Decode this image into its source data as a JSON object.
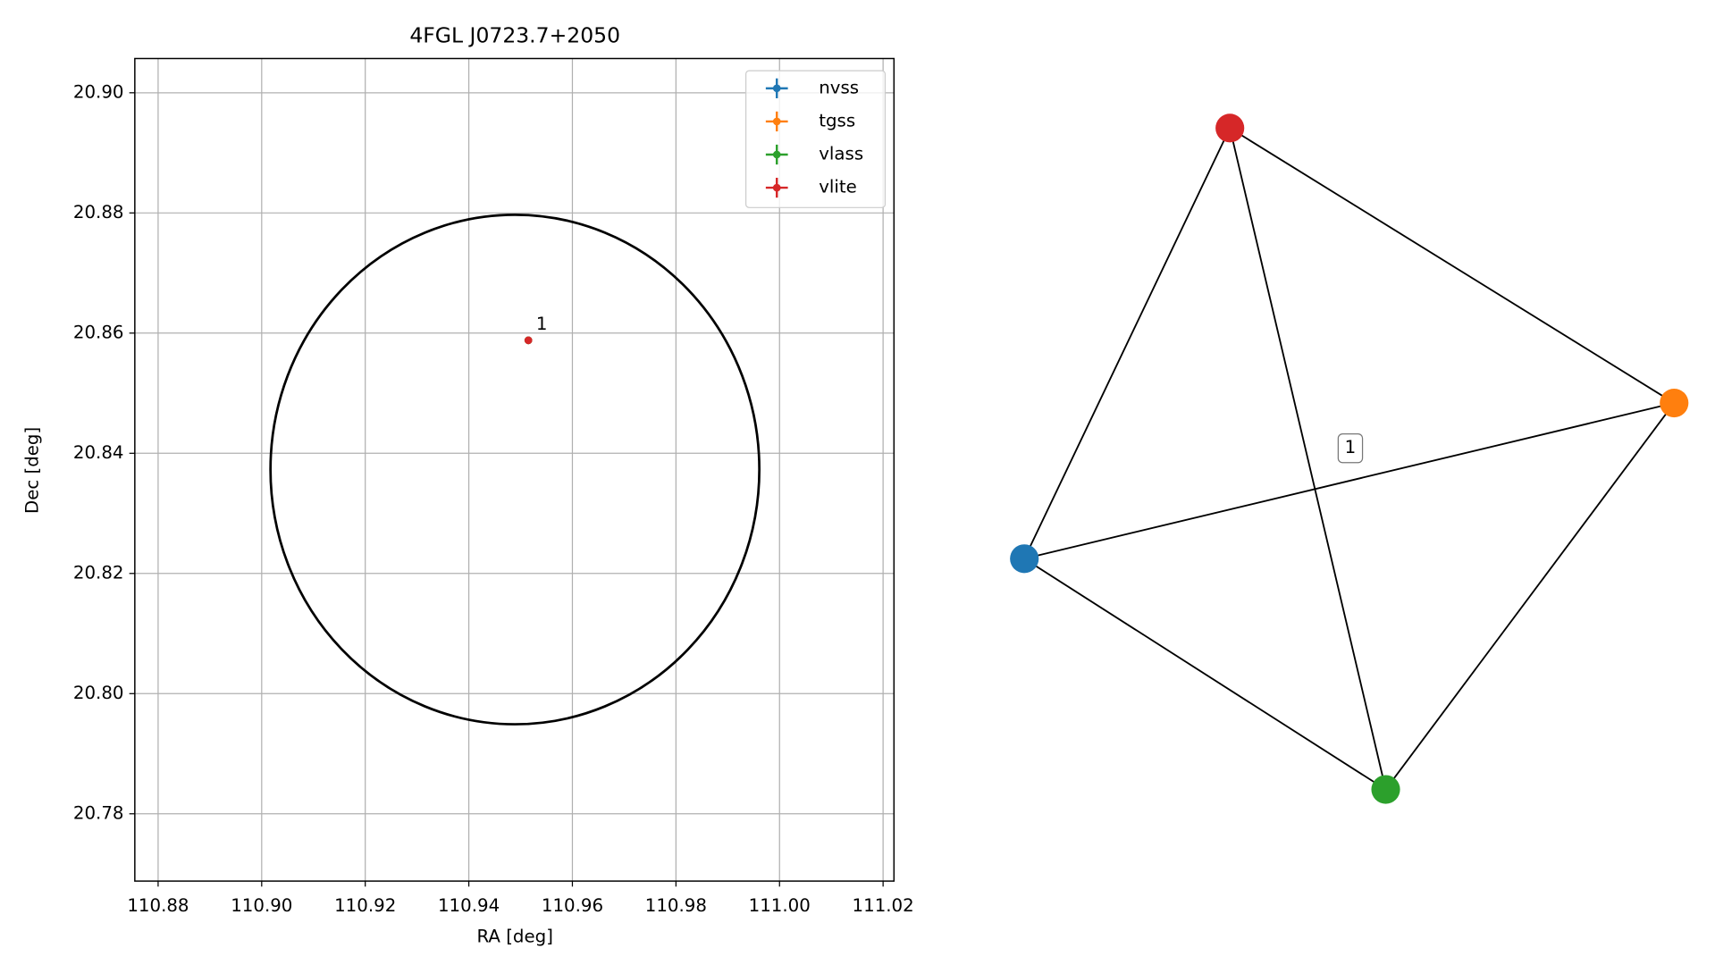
{
  "chart_data": [
    {
      "type": "scatter",
      "title": "4FGL J0723.7+2050",
      "xlabel": "RA [deg]",
      "ylabel": "Dec [deg]",
      "xlim": [
        110.8755,
        111.0221
      ],
      "ylim": [
        20.7688,
        20.9057
      ],
      "xticks": [
        110.88,
        {
          "value": 110.9,
          "label": "110.90"
        },
        110.92,
        110.94,
        110.96,
        110.98,
        {
          "value": 111.0,
          "label": "111.00"
        },
        111.02
      ],
      "yticks": [
        20.78,
        {
          "value": 20.8,
          "label": "20.80"
        },
        20.82,
        20.84,
        20.86,
        20.88,
        {
          "value": 20.9,
          "label": "20.90"
        }
      ],
      "grid": true,
      "legend": "upper right",
      "series": [
        {
          "name": "nvss",
          "color": "#1f77b4",
          "x": [
            110.9515
          ],
          "values": [
            20.8588
          ]
        },
        {
          "name": "tgss",
          "color": "#ff7f0e",
          "x": [
            110.9515
          ],
          "values": [
            20.8588
          ]
        },
        {
          "name": "vlass",
          "color": "#2ca02c",
          "x": [
            110.9515
          ],
          "values": [
            20.8588
          ]
        },
        {
          "name": "vlite",
          "color": "#d62728",
          "x": [
            110.9515
          ],
          "values": [
            20.8588
          ]
        }
      ],
      "annotation": {
        "text": "1",
        "x": 110.9515,
        "y": 20.8588
      },
      "ellipse": {
        "center_x": 110.9489,
        "center_y": 20.8373,
        "half_width": 0.0472,
        "half_height": 0.0424,
        "color": "#000000"
      }
    },
    {
      "type": "graph",
      "nodes": [
        {
          "name": "nvss",
          "color": "#1f77b4"
        },
        {
          "name": "tgss",
          "color": "#ff7f0e"
        },
        {
          "name": "vlass",
          "color": "#2ca02c"
        },
        {
          "name": "vlite",
          "color": "#d62728"
        }
      ],
      "edges": [
        [
          "nvss",
          "vlite"
        ],
        [
          "nvss",
          "tgss"
        ],
        [
          "nvss",
          "vlass"
        ],
        [
          "vlite",
          "tgss"
        ],
        [
          "vlite",
          "vlass"
        ],
        [
          "tgss",
          "vlass"
        ]
      ],
      "edge_label": "1"
    }
  ]
}
